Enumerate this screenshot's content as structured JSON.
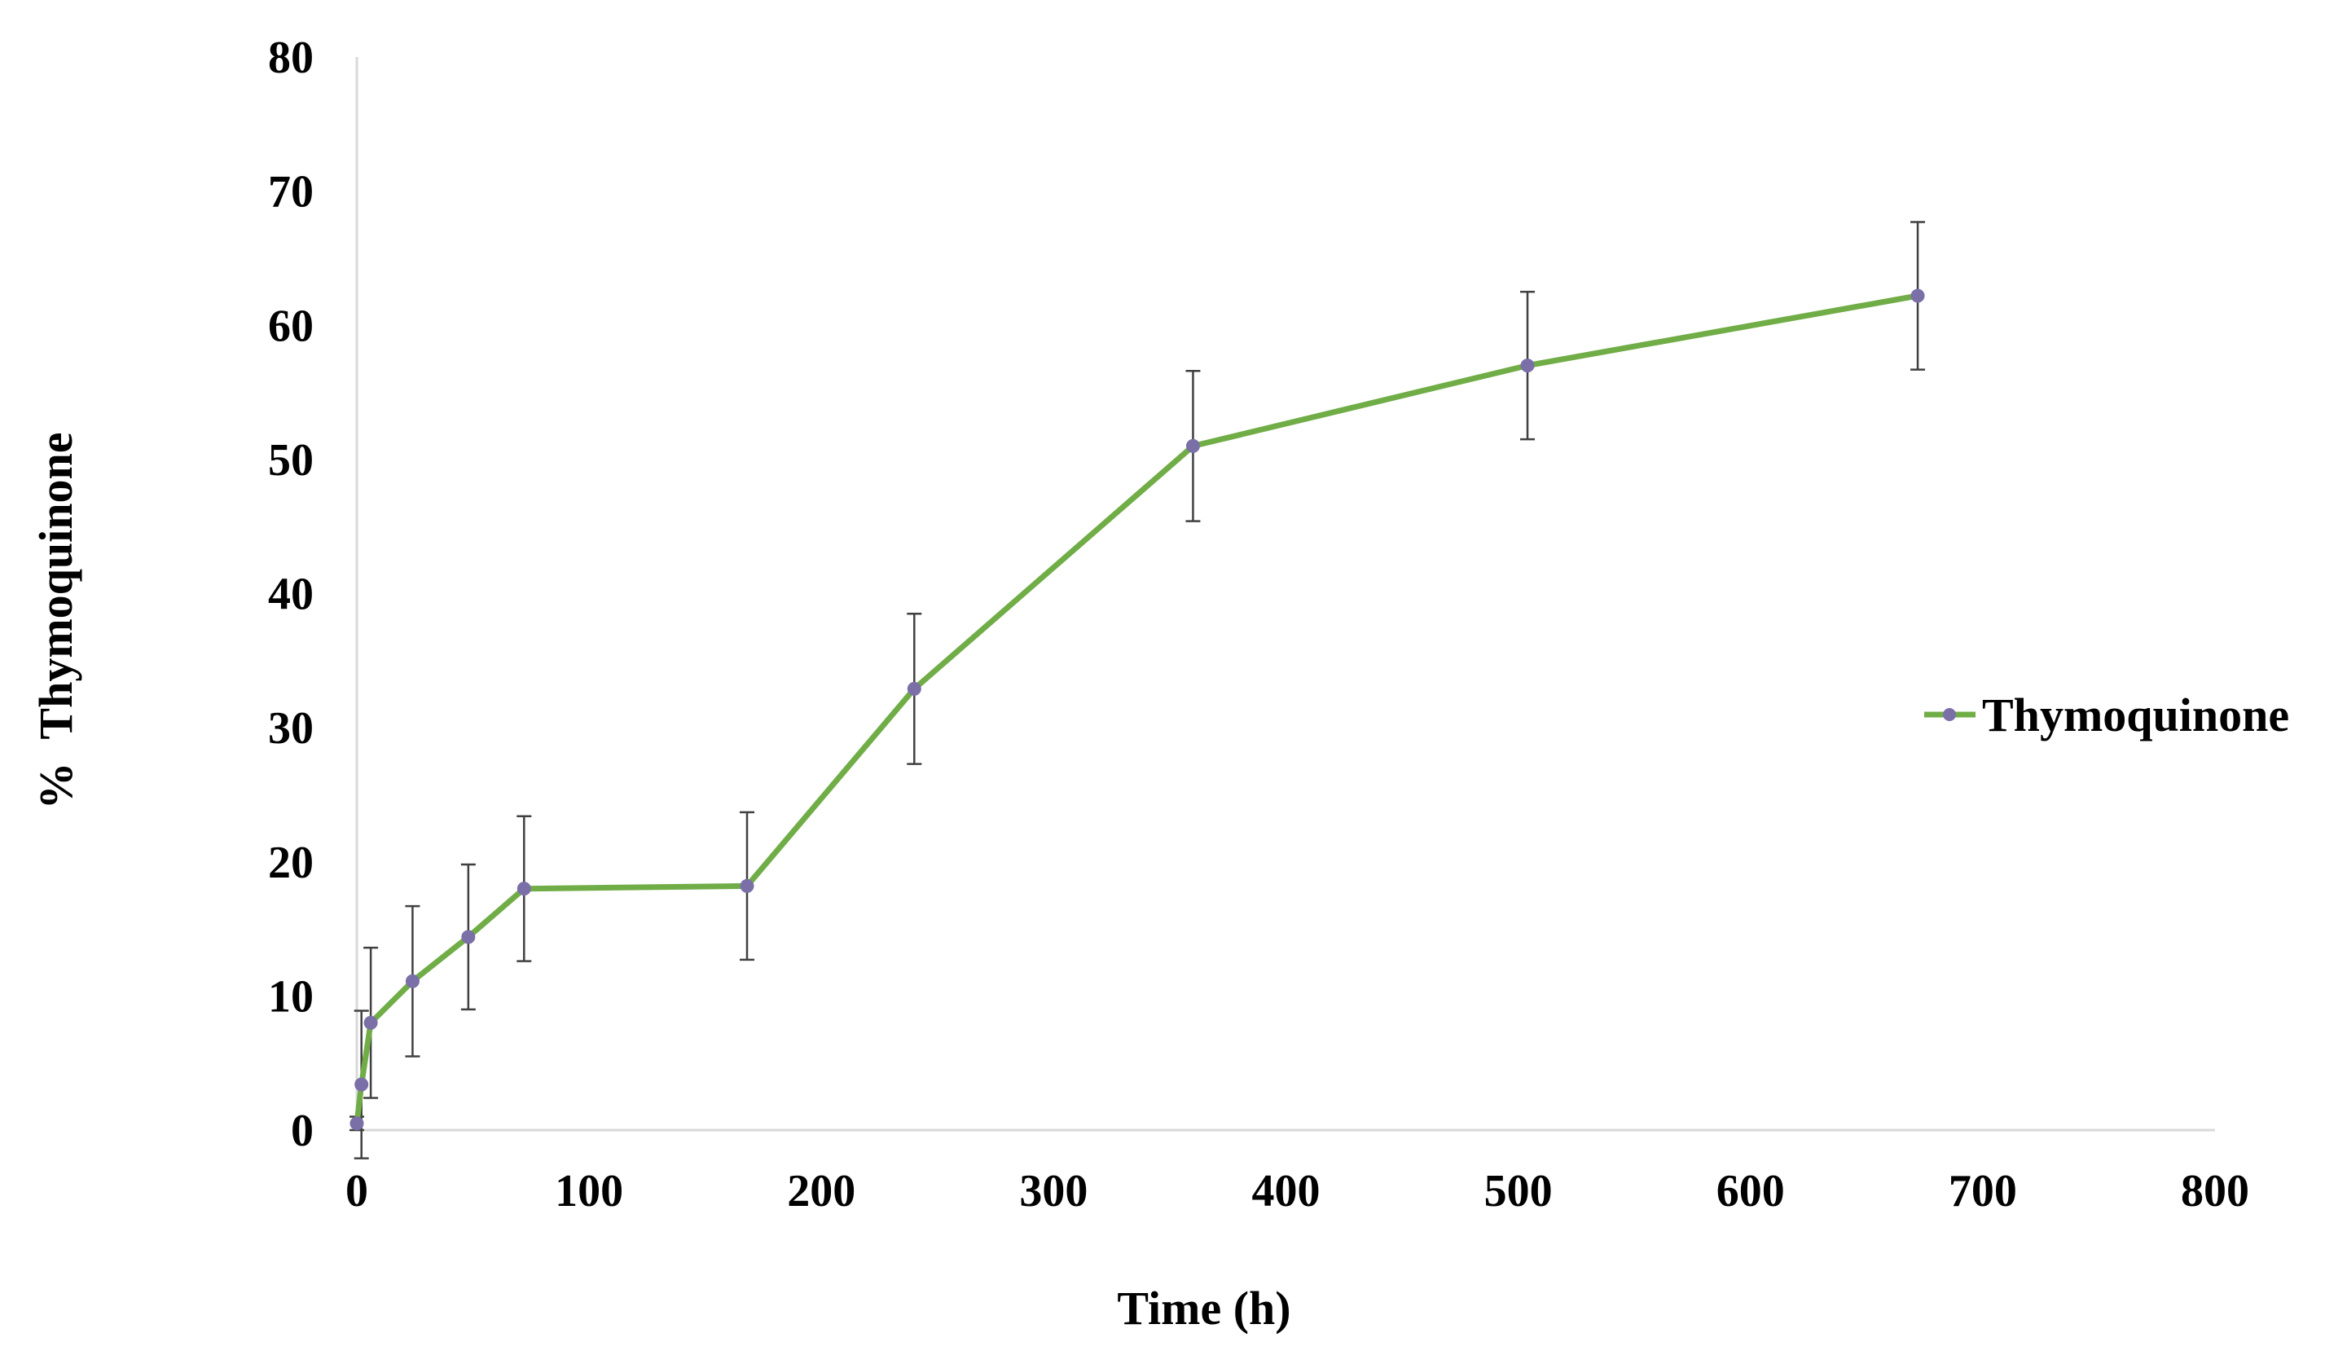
{
  "chart_data": {
    "type": "line",
    "title": "",
    "xlabel": "Time (h)",
    "ylabel": "%  Thymoquinone",
    "xlim": [
      0,
      800
    ],
    "ylim": [
      0,
      80
    ],
    "x_ticks": [
      0,
      100,
      200,
      300,
      400,
      500,
      600,
      700,
      800
    ],
    "y_ticks": [
      0,
      10,
      20,
      30,
      40,
      50,
      60,
      70,
      80
    ],
    "x_tick_labels": [
      "0",
      "100",
      "200",
      "300",
      "400",
      "500",
      "600",
      "700",
      "800"
    ],
    "y_tick_labels": [
      "0",
      "10",
      "20",
      "30",
      "40",
      "50",
      "60",
      "70",
      "80"
    ],
    "grid": false,
    "legend_position": "right",
    "series": [
      {
        "name": "Thymoquinone",
        "color": "#70ad47",
        "marker_color": "#7b6fa8",
        "x": [
          0,
          2,
          6,
          24,
          48,
          72,
          168,
          240,
          360,
          504,
          672
        ],
        "y": [
          0.5,
          3.4,
          8.0,
          11.1,
          14.4,
          18.0,
          18.2,
          32.9,
          51.0,
          57.0,
          62.2
        ],
        "error": [
          0.5,
          5.5,
          5.6,
          5.6,
          5.4,
          5.4,
          5.5,
          5.6,
          5.6,
          5.5,
          5.5
        ]
      }
    ]
  }
}
